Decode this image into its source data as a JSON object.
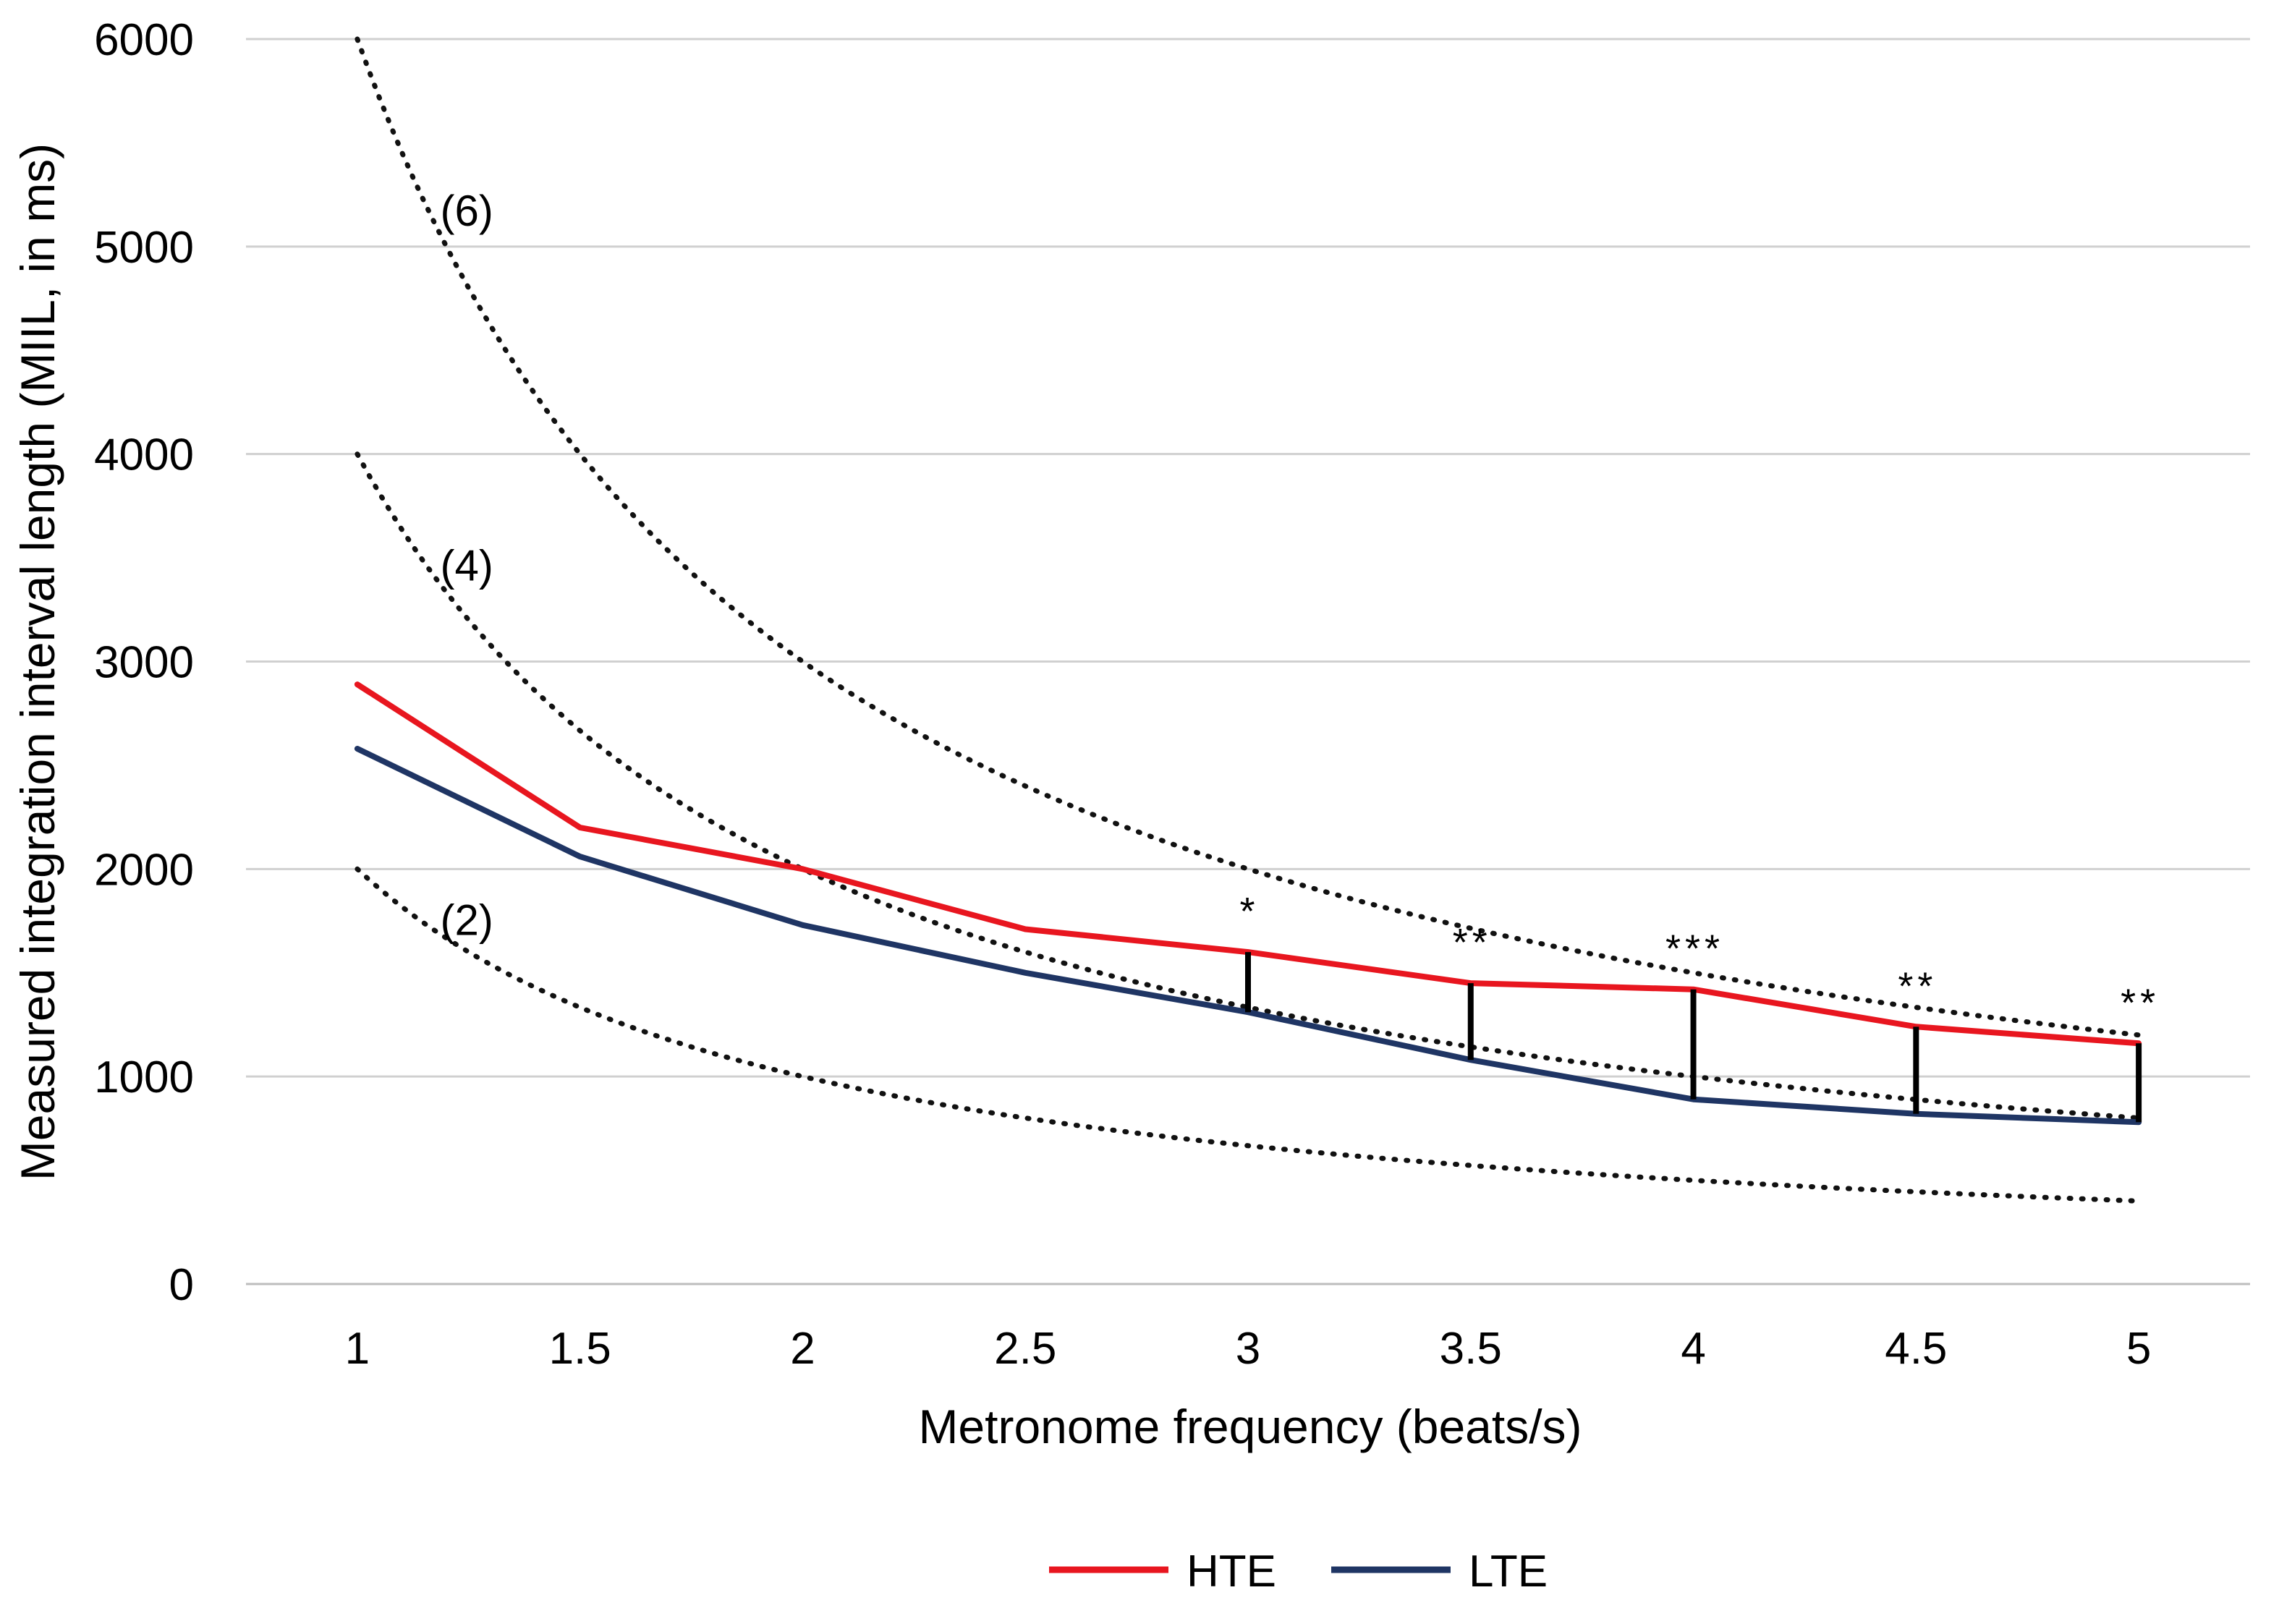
{
  "chart_data": {
    "type": "line",
    "title": "",
    "xlabel": "Metronome frequency (beats/s)",
    "ylabel": "Measured integration interval length (MIIL, in ms)",
    "categories": [
      "1",
      "1.5",
      "2",
      "2.5",
      "3",
      "3.5",
      "4",
      "4.5",
      "5"
    ],
    "x": [
      1,
      1.5,
      2,
      2.5,
      3,
      3.5,
      4,
      4.5,
      5
    ],
    "xlim": [
      0.75,
      5.25
    ],
    "ylim": [
      0,
      6000
    ],
    "yticks": [
      0,
      1000,
      2000,
      3000,
      4000,
      5000,
      6000
    ],
    "ytick_labels": [
      "0",
      "1000",
      "2000",
      "3000",
      "4000",
      "5000",
      "6000"
    ],
    "grid": true,
    "legend_position": "bottom-center",
    "series": [
      {
        "name": "HTE",
        "color": "#e8161f",
        "values": [
          2890,
          2200,
          2000,
          1710,
          1600,
          1450,
          1420,
          1240,
          1160
        ]
      },
      {
        "name": "LTE",
        "color": "#1f3564",
        "values": [
          2580,
          2060,
          1730,
          1500,
          1310,
          1080,
          890,
          820,
          780
        ]
      }
    ],
    "reference_curves": [
      {
        "label": "(6)",
        "multiplier": 6,
        "values": [
          6000,
          4000,
          3000,
          2400,
          2000,
          1714,
          1500,
          1333,
          1200
        ]
      },
      {
        "label": "(4)",
        "multiplier": 4,
        "values": [
          4000,
          2667,
          2000,
          1600,
          1333,
          1143,
          1000,
          889,
          800
        ]
      },
      {
        "label": "(2)",
        "multiplier": 2,
        "values": [
          2000,
          1333,
          1000,
          800,
          667,
          571,
          500,
          444,
          400
        ]
      }
    ],
    "significance": [
      {
        "x": 3,
        "marker": "*"
      },
      {
        "x": 3.5,
        "marker": "**"
      },
      {
        "x": 4,
        "marker": "***"
      },
      {
        "x": 4.5,
        "marker": "**"
      },
      {
        "x": 5,
        "marker": "**"
      }
    ]
  }
}
